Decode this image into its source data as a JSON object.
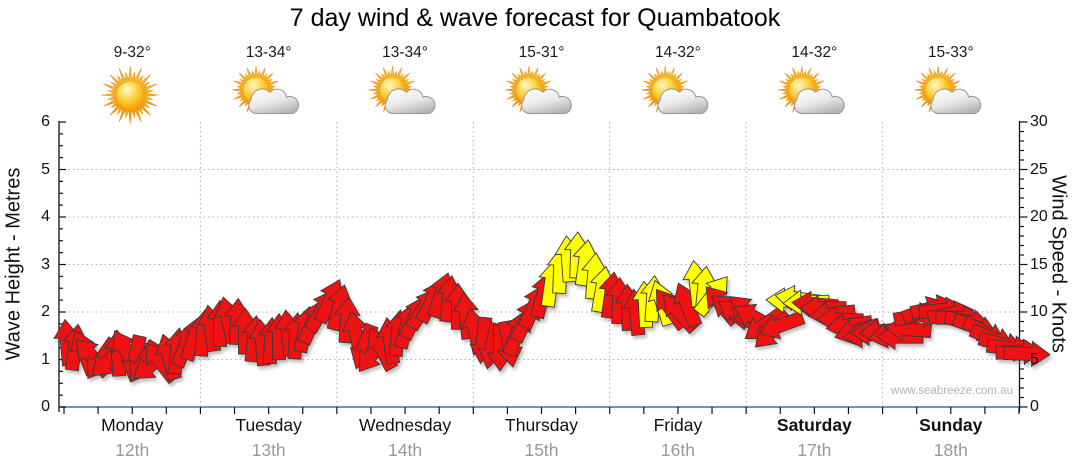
{
  "title": "7 day wind & wave forecast for Quambatook",
  "watermark": "www.seabreeze.com.au",
  "axes": {
    "left_title": "Wave Height - Metres",
    "right_title": "Wind Speed - Knots",
    "left_ticks": [
      6,
      5,
      4,
      3,
      2,
      1,
      0
    ],
    "right_ticks": [
      30,
      25,
      20,
      15,
      10,
      5,
      0
    ],
    "wave_axis_range": [
      0,
      6
    ],
    "wind_axis_range": [
      0,
      30
    ]
  },
  "days": [
    {
      "name": "Monday",
      "date": "12th",
      "temp": "9-32°",
      "icon": "sunny",
      "bold": false
    },
    {
      "name": "Tuesday",
      "date": "13th",
      "temp": "13-34°",
      "icon": "partly-cloudy",
      "bold": false
    },
    {
      "name": "Wednesday",
      "date": "14th",
      "temp": "13-34°",
      "icon": "partly-cloudy",
      "bold": false
    },
    {
      "name": "Thursday",
      "date": "15th",
      "temp": "15-31°",
      "icon": "partly-cloudy",
      "bold": false
    },
    {
      "name": "Friday",
      "date": "16th",
      "temp": "14-32°",
      "icon": "partly-cloudy",
      "bold": false
    },
    {
      "name": "Saturday",
      "date": "17th",
      "temp": "14-32°",
      "icon": "partly-cloudy",
      "bold": true
    },
    {
      "name": "Sunday",
      "date": "18th",
      "temp": "15-33°",
      "icon": "partly-cloudy",
      "bold": true
    }
  ],
  "colors": {
    "red": "#ee1212",
    "yellow": "#ffff00",
    "outline": "#3a3a3a",
    "baseline": "#3a74a5",
    "grid": "#b0b0b0",
    "axis": "#111111",
    "date_text": "#999999",
    "watermark_text": "#b4b4b4"
  },
  "chart_data": {
    "type": "wind-arrow-timeseries",
    "x_unit": "px",
    "wave_axis_range": [
      0,
      6
    ],
    "wind_axis_range": [
      0,
      30
    ],
    "note": "arrows = [x_px, wind_speed_knots, direction_deg_clockwise_from_up, color r=red y=yellow]",
    "arrows": [
      [
        67,
        6.8,
        -5,
        "r"
      ],
      [
        75,
        6.3,
        8,
        "r"
      ],
      [
        84,
        5.8,
        -22,
        "r"
      ],
      [
        92,
        5.3,
        -42,
        "r"
      ],
      [
        101,
        5.0,
        215,
        "r"
      ],
      [
        109,
        4.9,
        228,
        "r"
      ],
      [
        118,
        5.7,
        -3,
        "r"
      ],
      [
        126,
        5.9,
        -30,
        "r"
      ],
      [
        135,
        5.1,
        192,
        "r"
      ],
      [
        143,
        4.7,
        212,
        "r"
      ],
      [
        152,
        4.5,
        232,
        "r"
      ],
      [
        160,
        4.8,
        -38,
        "r"
      ],
      [
        169,
        5.3,
        -15,
        "r"
      ],
      [
        177,
        5.9,
        6,
        "r"
      ],
      [
        186,
        6.6,
        22,
        "r"
      ],
      [
        194,
        7.3,
        18,
        "r"
      ],
      [
        203,
        7.8,
        5,
        "r"
      ],
      [
        211,
        8.3,
        -8,
        "r"
      ],
      [
        220,
        8.8,
        0,
        "r"
      ],
      [
        228,
        9.2,
        -12,
        "r"
      ],
      [
        237,
        9.0,
        3,
        "r"
      ],
      [
        245,
        8.0,
        0,
        "r"
      ],
      [
        254,
        7.2,
        6,
        "r"
      ],
      [
        262,
        6.8,
        -5,
        "r"
      ],
      [
        271,
        7.0,
        3,
        "r"
      ],
      [
        279,
        7.4,
        0,
        "r"
      ],
      [
        288,
        7.8,
        -6,
        "r"
      ],
      [
        296,
        7.5,
        4,
        "r"
      ],
      [
        305,
        8.2,
        12,
        "r"
      ],
      [
        313,
        9.0,
        24,
        "r"
      ],
      [
        322,
        10.2,
        30,
        "r"
      ],
      [
        330,
        11.2,
        25,
        "r"
      ],
      [
        339,
        10.5,
        14,
        "r"
      ],
      [
        347,
        9.2,
        4,
        "r"
      ],
      [
        356,
        7.7,
        -12,
        "r"
      ],
      [
        364,
        6.3,
        200,
        "r"
      ],
      [
        373,
        5.7,
        216,
        "r"
      ],
      [
        381,
        6.2,
        -28,
        "r"
      ],
      [
        390,
        7.0,
        -8,
        "r"
      ],
      [
        398,
        7.8,
        6,
        "r"
      ],
      [
        407,
        8.6,
        16,
        "r"
      ],
      [
        415,
        9.5,
        26,
        "r"
      ],
      [
        424,
        10.4,
        33,
        "r"
      ],
      [
        432,
        11.2,
        28,
        "r"
      ],
      [
        441,
        11.8,
        18,
        "r"
      ],
      [
        449,
        11.4,
        7,
        "r"
      ],
      [
        458,
        10.6,
        0,
        "r"
      ],
      [
        466,
        9.6,
        -6,
        "r"
      ],
      [
        475,
        8.0,
        -12,
        "r"
      ],
      [
        483,
        7.0,
        186,
        "r"
      ],
      [
        492,
        6.4,
        192,
        "r"
      ],
      [
        500,
        6.2,
        180,
        "r"
      ],
      [
        509,
        6.6,
        170,
        "r"
      ],
      [
        517,
        7.8,
        20,
        "r"
      ],
      [
        526,
        9.2,
        26,
        "r"
      ],
      [
        534,
        10.6,
        24,
        "r"
      ],
      [
        543,
        11.8,
        15,
        "r"
      ],
      [
        551,
        13.0,
        8,
        "y"
      ],
      [
        560,
        14.4,
        2,
        "y"
      ],
      [
        568,
        15.6,
        -4,
        "y"
      ],
      [
        577,
        16.0,
        2,
        "y"
      ],
      [
        585,
        15.2,
        8,
        "y"
      ],
      [
        594,
        13.8,
        5,
        "y"
      ],
      [
        602,
        12.4,
        10,
        "y"
      ],
      [
        611,
        11.8,
        8,
        "r"
      ],
      [
        619,
        11.2,
        2,
        "r"
      ],
      [
        628,
        10.5,
        -2,
        "r"
      ],
      [
        636,
        10.0,
        -6,
        "r"
      ],
      [
        645,
        10.8,
        -3,
        "y"
      ],
      [
        653,
        11.4,
        4,
        "y"
      ],
      [
        662,
        11.0,
        -18,
        "y"
      ],
      [
        670,
        10.4,
        -36,
        "r"
      ],
      [
        679,
        10.0,
        -42,
        "r"
      ],
      [
        687,
        10.8,
        -22,
        "r"
      ],
      [
        696,
        13.0,
        -6,
        "y"
      ],
      [
        704,
        12.4,
        6,
        "y"
      ],
      [
        713,
        11.8,
        38,
        "y"
      ],
      [
        721,
        10.8,
        -40,
        "r"
      ],
      [
        730,
        10.2,
        -52,
        "r"
      ],
      [
        738,
        9.8,
        -58,
        "r"
      ],
      [
        747,
        10.0,
        -48,
        "r"
      ],
      [
        755,
        9.4,
        -62,
        "r"
      ],
      [
        764,
        8.6,
        235,
        "r"
      ],
      [
        772,
        8.0,
        226,
        "r"
      ],
      [
        781,
        8.6,
        250,
        "r"
      ],
      [
        789,
        11.2,
        -88,
        "y"
      ],
      [
        798,
        11.4,
        -82,
        "y"
      ],
      [
        806,
        11.0,
        -92,
        "y"
      ],
      [
        815,
        10.8,
        -85,
        "r"
      ],
      [
        823,
        10.4,
        -90,
        "r"
      ],
      [
        832,
        9.8,
        -96,
        "r"
      ],
      [
        840,
        9.2,
        -88,
        "r"
      ],
      [
        849,
        8.6,
        -98,
        "r"
      ],
      [
        857,
        8.0,
        -106,
        "r"
      ],
      [
        866,
        7.6,
        -96,
        "r"
      ],
      [
        874,
        7.8,
        -90,
        "r"
      ],
      [
        883,
        8.0,
        -95,
        "r"
      ],
      [
        891,
        7.6,
        -100,
        "r"
      ],
      [
        900,
        7.4,
        -90,
        "r"
      ],
      [
        908,
        8.2,
        -85,
        "r"
      ],
      [
        917,
        9.6,
        80,
        "r"
      ],
      [
        925,
        10.2,
        70,
        "r"
      ],
      [
        934,
        10.4,
        78,
        "r"
      ],
      [
        942,
        10.2,
        85,
        "r"
      ],
      [
        951,
        9.8,
        80,
        "r"
      ],
      [
        959,
        9.4,
        90,
        "r"
      ],
      [
        968,
        9.0,
        100,
        "r"
      ],
      [
        976,
        8.4,
        110,
        "r"
      ],
      [
        985,
        7.8,
        118,
        "r"
      ],
      [
        993,
        7.2,
        112,
        "r"
      ],
      [
        1002,
        6.6,
        105,
        "r"
      ],
      [
        1010,
        6.2,
        96,
        "r"
      ],
      [
        1019,
        5.8,
        88,
        "r"
      ],
      [
        1027,
        5.6,
        92,
        "r"
      ]
    ]
  }
}
